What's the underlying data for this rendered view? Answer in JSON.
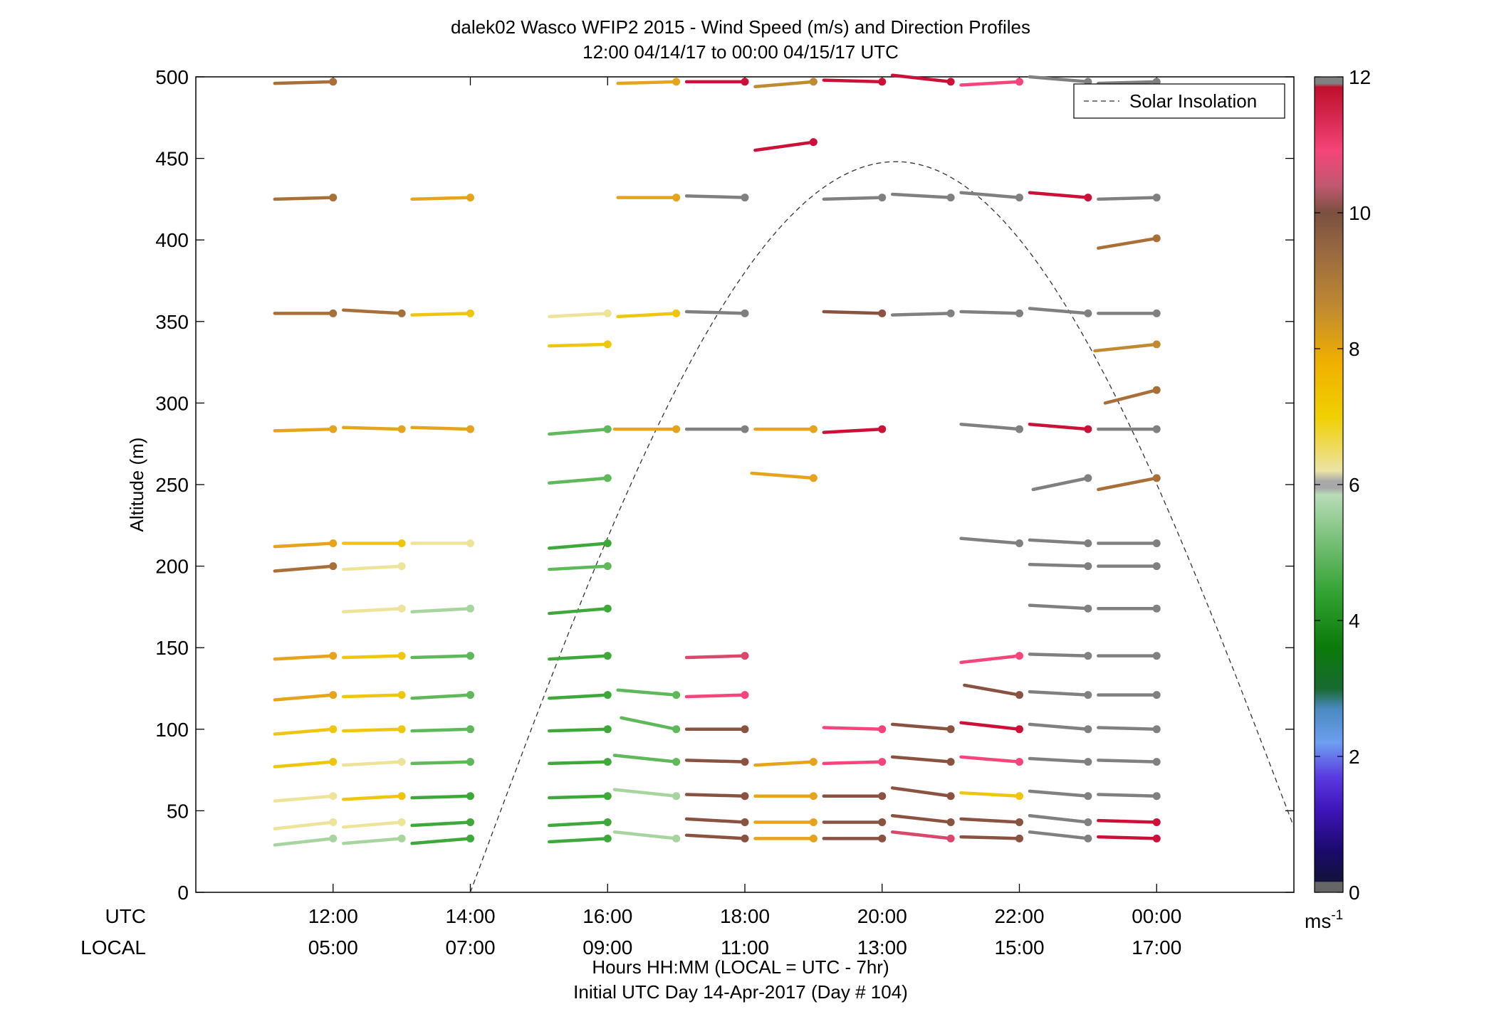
{
  "chart_data": {
    "type": "scatter",
    "title": "dalek02 Wasco WFIP2 2015 - Wind Speed (m/s) and Direction Profiles",
    "subtitle": "12:00 04/14/17 to 00:00 04/15/17  UTC",
    "ylabel": "Altitude (m)",
    "xlabel": "Hours HH:MM  (LOCAL = UTC - 7hr)",
    "xlabel2": "Initial UTC Day 14-Apr-2017 (Day # 104)",
    "ylim": [
      0,
      500
    ],
    "xlim_hours_after_1200": [
      -2,
      14
    ],
    "yticks": [
      0,
      50,
      100,
      150,
      200,
      250,
      300,
      350,
      400,
      450,
      500
    ],
    "row_labels": {
      "utc": "UTC",
      "local": "LOCAL"
    },
    "xticks": [
      {
        "h": 0,
        "utc": "12:00",
        "local": "05:00"
      },
      {
        "h": 2,
        "utc": "14:00",
        "local": "07:00"
      },
      {
        "h": 4,
        "utc": "16:00",
        "local": "09:00"
      },
      {
        "h": 6,
        "utc": "18:00",
        "local": "11:00"
      },
      {
        "h": 8,
        "utc": "20:00",
        "local": "13:00"
      },
      {
        "h": 10,
        "utc": "22:00",
        "local": "15:00"
      },
      {
        "h": 12,
        "utc": "00:00",
        "local": "17:00"
      }
    ],
    "colorbar": {
      "min": 0,
      "max": 12,
      "ticks": [
        0,
        2,
        4,
        6,
        8,
        10,
        12
      ],
      "unit": "ms",
      "unit_exp": "-1"
    },
    "legend": {
      "label": "Solar Insolation",
      "position": "top-right"
    },
    "colors": {
      "grey": "#808080",
      "lgreen": "#a8d4a0",
      "mgreen": "#5fb85a",
      "green": "#3ea83a",
      "dgreen": "#0d8a0d",
      "ltyellow": "#ede49a",
      "yellow": "#eec60e",
      "orange": "#e6a41c",
      "lbrown": "#c08a30",
      "brown": "#a87038",
      "dbrown": "#8a5240",
      "pink": "#f5457a",
      "rose": "#d9486a",
      "red": "#cc1038",
      "gray": "#808080"
    },
    "colorbar_stops": [
      {
        "v": 0,
        "c": "#666666"
      },
      {
        "v": 0.15,
        "c": "#666666"
      },
      {
        "v": 0.16,
        "c": "#12123a"
      },
      {
        "v": 0.6,
        "c": "#1a0a6a"
      },
      {
        "v": 1.2,
        "c": "#3d14b8"
      },
      {
        "v": 1.7,
        "c": "#5a3ae0"
      },
      {
        "v": 2.2,
        "c": "#6e9ef0"
      },
      {
        "v": 2.7,
        "c": "#4a8ac0"
      },
      {
        "v": 3.0,
        "c": "#186a30"
      },
      {
        "v": 3.6,
        "c": "#0a7a0a"
      },
      {
        "v": 4.4,
        "c": "#32a232"
      },
      {
        "v": 5.2,
        "c": "#7ac07a"
      },
      {
        "v": 5.85,
        "c": "#b8dcb8"
      },
      {
        "v": 5.95,
        "c": "#a8a8a8"
      },
      {
        "v": 6.05,
        "c": "#a8a8a8"
      },
      {
        "v": 6.2,
        "c": "#ece3a6"
      },
      {
        "v": 7.0,
        "c": "#f0d000"
      },
      {
        "v": 7.8,
        "c": "#f0b000"
      },
      {
        "v": 8.6,
        "c": "#c08a30"
      },
      {
        "v": 9.4,
        "c": "#9a6a40"
      },
      {
        "v": 10.0,
        "c": "#7a5040"
      },
      {
        "v": 10.4,
        "c": "#c05870"
      },
      {
        "v": 10.9,
        "c": "#f5457a"
      },
      {
        "v": 11.4,
        "c": "#d62850"
      },
      {
        "v": 11.85,
        "c": "#c0102c"
      },
      {
        "v": 11.9,
        "c": "#808080"
      },
      {
        "v": 12,
        "c": "#808080"
      }
    ],
    "solar_insolation_curve": {
      "start_h": 2.0,
      "peak_h": 8.2,
      "peak_alt": 448,
      "end_h": 14.0,
      "end_alt": 40
    },
    "profiles": [
      {
        "t": 0,
        "barbs": [
          [
            33,
            "lgreen",
            -0.85,
            29
          ],
          [
            43,
            "ltyellow",
            -0.85,
            39
          ],
          [
            59,
            "ltyellow",
            -0.85,
            56
          ],
          [
            80,
            "yellow",
            -0.85,
            77
          ],
          [
            100,
            "yellow",
            -0.85,
            97
          ],
          [
            121,
            "orange",
            -0.85,
            118
          ],
          [
            145,
            "orange",
            -0.85,
            143
          ],
          [
            200,
            "brown",
            -0.85,
            197
          ],
          [
            214,
            "orange",
            -0.85,
            212
          ],
          [
            284,
            "orange",
            -0.85,
            283
          ],
          [
            355,
            "brown",
            -0.85,
            355
          ],
          [
            426,
            "brown",
            -0.85,
            425
          ],
          [
            497,
            "brown",
            -0.85,
            496
          ]
        ]
      },
      {
        "t": 1,
        "barbs": [
          [
            33,
            "lgreen",
            -0.85,
            30
          ],
          [
            43,
            "ltyellow",
            -0.85,
            40
          ],
          [
            59,
            "yellow",
            -0.85,
            57
          ],
          [
            80,
            "ltyellow",
            -0.85,
            78
          ],
          [
            100,
            "yellow",
            -0.85,
            99
          ],
          [
            121,
            "yellow",
            -0.85,
            120
          ],
          [
            145,
            "yellow",
            -0.85,
            144
          ],
          [
            174,
            "ltyellow",
            -0.85,
            172
          ],
          [
            200,
            "ltyellow",
            -0.85,
            198
          ],
          [
            214,
            "yellow",
            -0.85,
            214
          ],
          [
            284,
            "orange",
            -0.85,
            285
          ],
          [
            355,
            "brown",
            -0.85,
            357
          ]
        ]
      },
      {
        "t": 2,
        "barbs": [
          [
            33,
            "green",
            -0.85,
            30
          ],
          [
            43,
            "green",
            -0.85,
            41
          ],
          [
            59,
            "green",
            -0.85,
            58
          ],
          [
            80,
            "mgreen",
            -0.85,
            79
          ],
          [
            100,
            "mgreen",
            -0.85,
            99
          ],
          [
            121,
            "mgreen",
            -0.85,
            119
          ],
          [
            145,
            "mgreen",
            -0.85,
            144
          ],
          [
            174,
            "lgreen",
            -0.85,
            172
          ],
          [
            214,
            "ltyellow",
            -0.85,
            214
          ],
          [
            284,
            "orange",
            -0.85,
            285
          ],
          [
            355,
            "yellow",
            -0.85,
            354
          ],
          [
            426,
            "orange",
            -0.85,
            425
          ]
        ]
      },
      {
        "t": 4,
        "barbs": [
          [
            33,
            "green",
            -0.85,
            31
          ],
          [
            43,
            "green",
            -0.85,
            41
          ],
          [
            59,
            "green",
            -0.85,
            58
          ],
          [
            80,
            "green",
            -0.85,
            79
          ],
          [
            100,
            "green",
            -0.85,
            99
          ],
          [
            121,
            "green",
            -0.85,
            119
          ],
          [
            145,
            "green",
            -0.85,
            143
          ],
          [
            174,
            "green",
            -0.85,
            171
          ],
          [
            200,
            "mgreen",
            -0.85,
            198
          ],
          [
            214,
            "green",
            -0.85,
            211
          ],
          [
            254,
            "mgreen",
            -0.85,
            251
          ],
          [
            284,
            "mgreen",
            -0.85,
            281
          ],
          [
            336,
            "yellow",
            -0.85,
            335
          ],
          [
            355,
            "ltyellow",
            -0.85,
            353
          ]
        ]
      },
      {
        "t": 5,
        "barbs": [
          [
            33,
            "lgreen",
            -0.9,
            37
          ],
          [
            59,
            "lgreen",
            -0.9,
            63
          ],
          [
            80,
            "mgreen",
            -0.9,
            84
          ],
          [
            100,
            "mgreen",
            -0.8,
            107
          ],
          [
            121,
            "mgreen",
            -0.85,
            124
          ],
          [
            284,
            "orange",
            -0.9,
            284
          ],
          [
            355,
            "yellow",
            -0.85,
            353
          ],
          [
            426,
            "orange",
            -0.85,
            426
          ],
          [
            497,
            "orange",
            -0.85,
            496
          ]
        ]
      },
      {
        "t": 6,
        "barbs": [
          [
            33,
            "dbrown",
            -0.85,
            35
          ],
          [
            43,
            "dbrown",
            -0.85,
            45
          ],
          [
            59,
            "dbrown",
            -0.85,
            60
          ],
          [
            80,
            "dbrown",
            -0.85,
            81
          ],
          [
            100,
            "dbrown",
            -0.85,
            100
          ],
          [
            121,
            "pink",
            -0.85,
            120
          ],
          [
            145,
            "rose",
            -0.85,
            144
          ],
          [
            284,
            "gray",
            -0.85,
            284
          ],
          [
            355,
            "gray",
            -0.85,
            356
          ],
          [
            426,
            "gray",
            -0.85,
            427
          ],
          [
            497,
            "red",
            -0.85,
            497
          ]
        ]
      },
      {
        "t": 7,
        "barbs": [
          [
            33,
            "orange",
            -0.85,
            33
          ],
          [
            43,
            "orange",
            -0.85,
            43
          ],
          [
            59,
            "orange",
            -0.85,
            59
          ],
          [
            80,
            "orange",
            -0.85,
            78
          ],
          [
            254,
            "orange",
            -0.9,
            257
          ],
          [
            284,
            "orange",
            -0.85,
            284
          ],
          [
            460,
            "red",
            -0.85,
            455
          ],
          [
            497,
            "lbrown",
            -0.85,
            494
          ]
        ]
      },
      {
        "t": 8,
        "barbs": [
          [
            33,
            "dbrown",
            -0.85,
            33
          ],
          [
            43,
            "dbrown",
            -0.85,
            43
          ],
          [
            59,
            "dbrown",
            -0.85,
            59
          ],
          [
            80,
            "pink",
            -0.85,
            79
          ],
          [
            100,
            "pink",
            -0.85,
            101
          ],
          [
            284,
            "red",
            -0.85,
            282
          ],
          [
            355,
            "dbrown",
            -0.85,
            356
          ],
          [
            426,
            "gray",
            -0.85,
            425
          ],
          [
            497,
            "red",
            -0.85,
            498
          ]
        ]
      },
      {
        "t": 9,
        "barbs": [
          [
            33,
            "rose",
            -0.85,
            37
          ],
          [
            43,
            "dbrown",
            -0.85,
            47
          ],
          [
            59,
            "dbrown",
            -0.85,
            64
          ],
          [
            80,
            "dbrown",
            -0.85,
            83
          ],
          [
            100,
            "dbrown",
            -0.85,
            103
          ],
          [
            355,
            "gray",
            -0.85,
            354
          ],
          [
            426,
            "gray",
            -0.85,
            428
          ],
          [
            497,
            "red",
            -0.85,
            501
          ]
        ]
      },
      {
        "t": 10,
        "barbs": [
          [
            33,
            "dbrown",
            -0.85,
            34
          ],
          [
            43,
            "dbrown",
            -0.85,
            45
          ],
          [
            59,
            "yellow",
            -0.85,
            61
          ],
          [
            80,
            "pink",
            -0.85,
            83
          ],
          [
            100,
            "red",
            -0.85,
            104
          ],
          [
            121,
            "dbrown",
            -0.8,
            127
          ],
          [
            145,
            "pink",
            -0.85,
            141
          ],
          [
            214,
            "gray",
            -0.85,
            217
          ],
          [
            284,
            "gray",
            -0.85,
            287
          ],
          [
            355,
            "gray",
            -0.85,
            356
          ],
          [
            426,
            "gray",
            -0.85,
            429
          ],
          [
            497,
            "pink",
            -0.85,
            495
          ]
        ]
      },
      {
        "t": 11,
        "barbs": [
          [
            33,
            "gray",
            -0.85,
            37
          ],
          [
            43,
            "gray",
            -0.85,
            47
          ],
          [
            59,
            "gray",
            -0.85,
            62
          ],
          [
            80,
            "gray",
            -0.85,
            82
          ],
          [
            100,
            "gray",
            -0.85,
            103
          ],
          [
            121,
            "gray",
            -0.85,
            123
          ],
          [
            145,
            "gray",
            -0.85,
            146
          ],
          [
            174,
            "gray",
            -0.85,
            176
          ],
          [
            200,
            "gray",
            -0.85,
            201
          ],
          [
            214,
            "gray",
            -0.85,
            216
          ],
          [
            254,
            "gray",
            -0.8,
            247
          ],
          [
            284,
            "red",
            -0.85,
            287
          ],
          [
            355,
            "gray",
            -0.85,
            358
          ],
          [
            426,
            "red",
            -0.85,
            429
          ],
          [
            497,
            "gray",
            -0.85,
            500
          ]
        ]
      },
      {
        "t": 12,
        "barbs": [
          [
            33,
            "red",
            -0.85,
            34
          ],
          [
            43,
            "red",
            -0.85,
            44
          ],
          [
            59,
            "gray",
            -0.85,
            60
          ],
          [
            80,
            "gray",
            -0.85,
            81
          ],
          [
            100,
            "gray",
            -0.85,
            101
          ],
          [
            121,
            "gray",
            -0.85,
            121
          ],
          [
            145,
            "gray",
            -0.85,
            145
          ],
          [
            174,
            "gray",
            -0.85,
            174
          ],
          [
            200,
            "gray",
            -0.85,
            200
          ],
          [
            214,
            "gray",
            -0.85,
            214
          ],
          [
            254,
            "brown",
            -0.85,
            247
          ],
          [
            284,
            "gray",
            -0.85,
            284
          ],
          [
            308,
            "brown",
            -0.75,
            300
          ],
          [
            336,
            "lbrown",
            -0.9,
            332
          ],
          [
            355,
            "gray",
            -0.85,
            355
          ],
          [
            401,
            "brown",
            -0.85,
            395
          ],
          [
            426,
            "gray",
            -0.85,
            425
          ],
          [
            497,
            "gray",
            -0.85,
            496
          ]
        ]
      }
    ]
  }
}
